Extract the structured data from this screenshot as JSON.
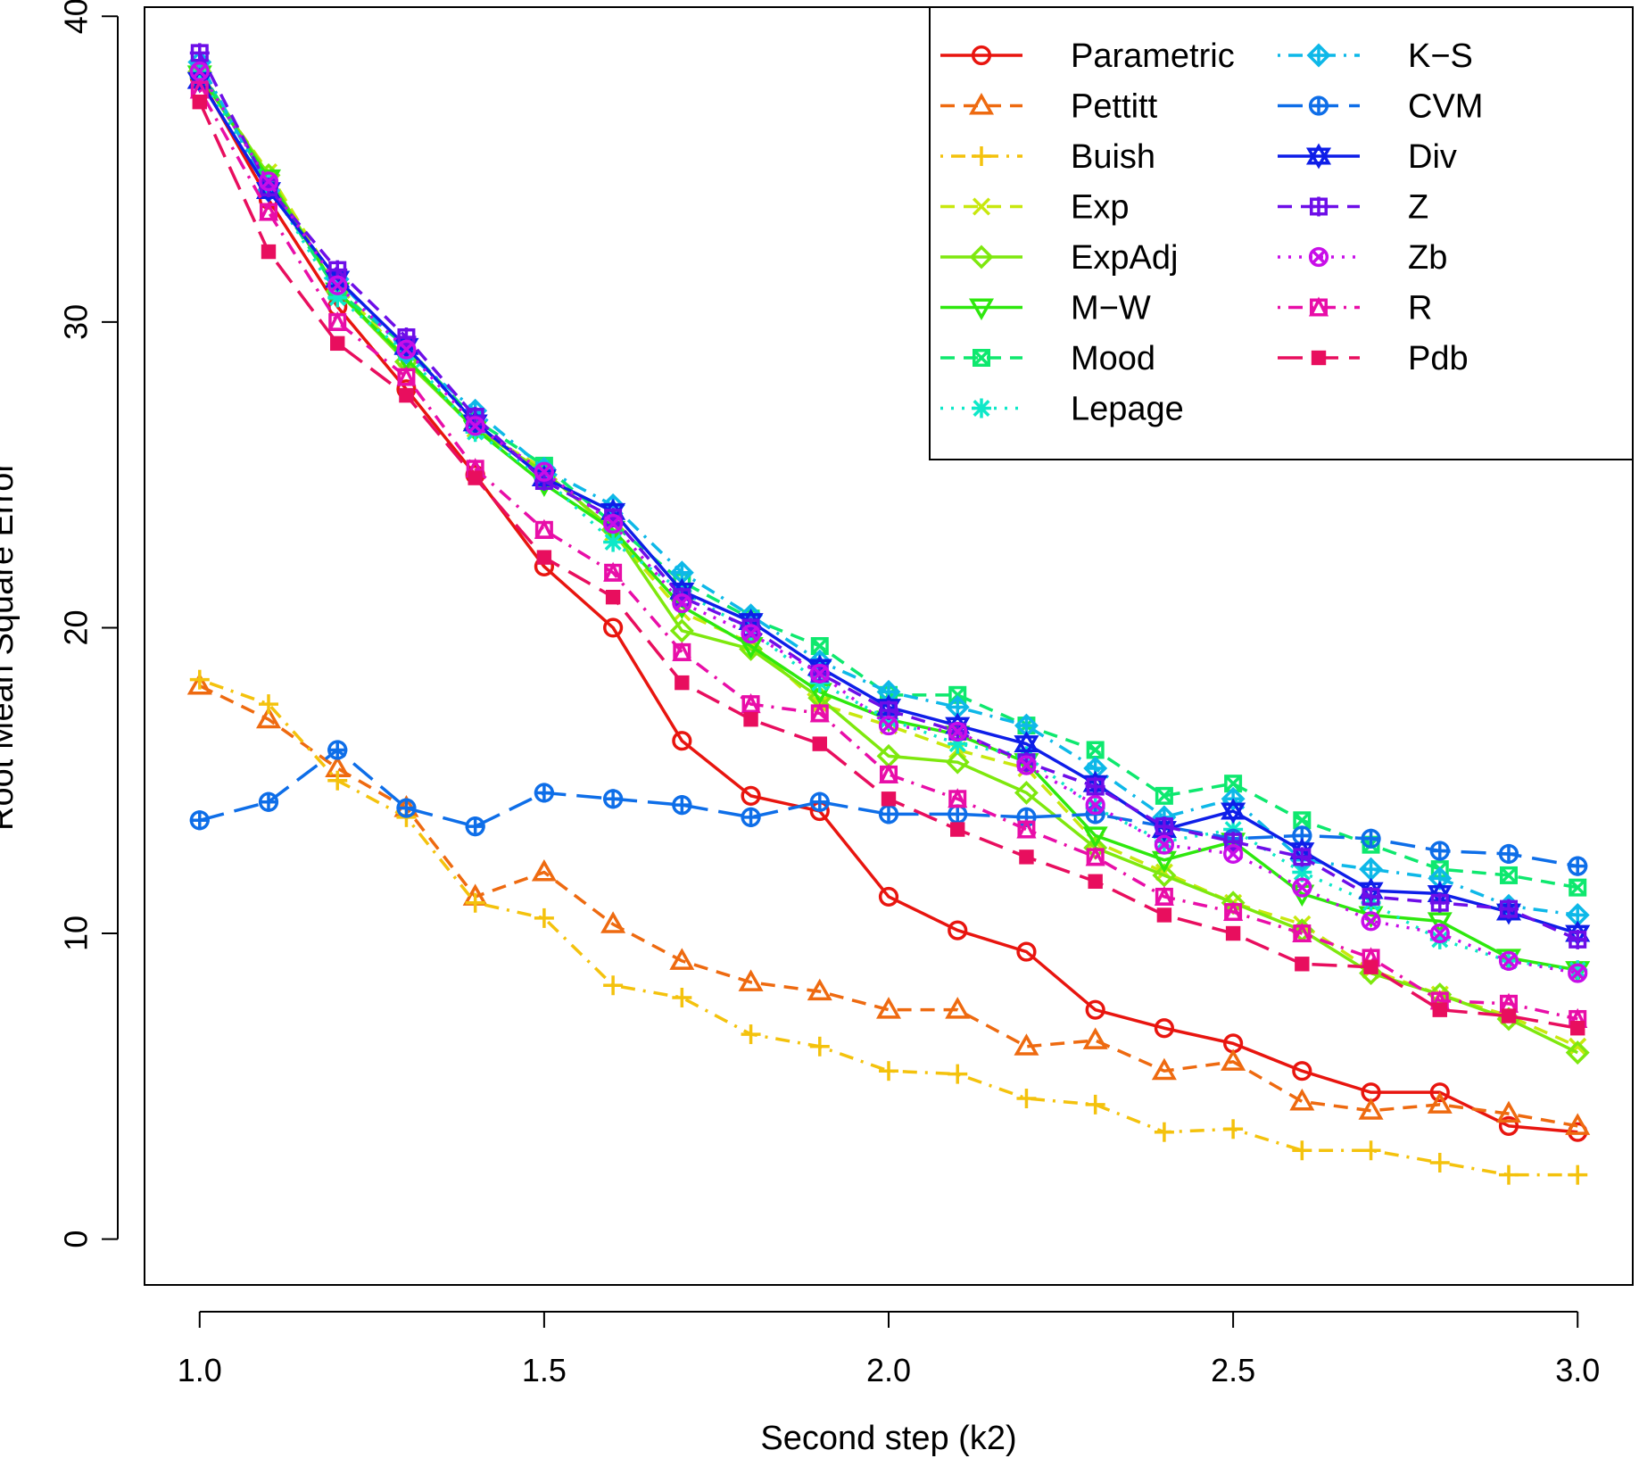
{
  "chart_data": {
    "type": "line",
    "title": "",
    "xlabel": "Second step (k2)",
    "ylabel": "Root Mean Square Error",
    "xlim": [
      0.92,
      3.08
    ],
    "ylim": [
      -1.5,
      40.3
    ],
    "x_ticks": [
      "1.0",
      "1.5",
      "2.0",
      "2.5",
      "3.0"
    ],
    "x_tick_values": [
      1.0,
      1.5,
      2.0,
      2.5,
      3.0
    ],
    "y_ticks": [
      "0",
      "10",
      "20",
      "30",
      "40"
    ],
    "y_tick_values": [
      0,
      10,
      20,
      30,
      40
    ],
    "grid": false,
    "legend_position": "top-right",
    "x": [
      1.0,
      1.1,
      1.2,
      1.3,
      1.4,
      1.5,
      1.6,
      1.7,
      1.8,
      1.9,
      2.0,
      2.1,
      2.2,
      2.3,
      2.4,
      2.5,
      2.6,
      2.7,
      2.8,
      2.9,
      3.0
    ],
    "series": [
      {
        "name": "Parametric",
        "color": "#e8150f",
        "dash": "solid",
        "marker": "circle",
        "values": [
          38.0,
          34.0,
          30.5,
          27.8,
          25.0,
          22.0,
          20.0,
          16.3,
          14.5,
          14.0,
          11.2,
          10.1,
          9.4,
          7.5,
          6.9,
          6.4,
          5.5,
          4.8,
          4.8,
          3.7,
          3.5
        ]
      },
      {
        "name": "Pettitt",
        "color": "#ee6a10",
        "dash": "dashed",
        "marker": "triangle",
        "values": [
          18.1,
          17.0,
          15.4,
          14.1,
          11.2,
          12.0,
          10.3,
          9.1,
          8.4,
          8.1,
          7.5,
          7.5,
          6.3,
          6.5,
          5.5,
          5.8,
          4.5,
          4.2,
          4.4,
          4.1,
          3.7
        ]
      },
      {
        "name": "Buish",
        "color": "#f4c20d",
        "dash": "dotdash",
        "marker": "plus",
        "values": [
          18.3,
          17.5,
          15.0,
          13.8,
          11.0,
          10.5,
          8.3,
          7.9,
          6.7,
          6.3,
          5.5,
          5.4,
          4.6,
          4.4,
          3.5,
          3.6,
          2.9,
          2.9,
          2.5,
          2.1,
          2.1
        ]
      },
      {
        "name": "Exp",
        "color": "#c8e80e",
        "dash": "dashed",
        "marker": "cross",
        "values": [
          38.1,
          34.9,
          31.2,
          28.8,
          26.5,
          25.2,
          23.1,
          20.5,
          19.5,
          17.5,
          16.8,
          16.0,
          15.4,
          13.0,
          12.0,
          11.0,
          10.3,
          8.8,
          8.0,
          7.3,
          6.3
        ]
      },
      {
        "name": "ExpAdj",
        "color": "#7ee80e",
        "dash": "solid",
        "marker": "diamond",
        "values": [
          38.2,
          34.8,
          31.0,
          28.7,
          26.5,
          25.1,
          23.2,
          19.9,
          19.3,
          17.7,
          15.8,
          15.6,
          14.6,
          12.8,
          11.9,
          11.0,
          10.1,
          8.7,
          8.0,
          7.2,
          6.1
        ]
      },
      {
        "name": "M−W",
        "color": "#2ee80e",
        "dash": "solid",
        "marker": "triangle-down",
        "values": [
          38.1,
          34.7,
          31.0,
          28.8,
          26.5,
          24.7,
          23.2,
          20.7,
          19.4,
          17.9,
          17.0,
          16.5,
          15.6,
          13.2,
          12.4,
          13.0,
          11.3,
          10.6,
          10.4,
          9.2,
          8.8
        ]
      },
      {
        "name": "Mood",
        "color": "#0ee86e",
        "dash": "dashed",
        "marker": "square-x",
        "values": [
          38.3,
          34.5,
          31.0,
          29.2,
          26.8,
          25.3,
          23.4,
          21.5,
          20.3,
          19.4,
          17.8,
          17.8,
          16.8,
          16.0,
          14.5,
          14.9,
          13.7,
          12.9,
          12.1,
          11.9,
          11.5
        ]
      },
      {
        "name": "Lepage",
        "color": "#0ee8c8",
        "dash": "dotted",
        "marker": "asterisk",
        "values": [
          38.0,
          34.5,
          30.8,
          29.0,
          26.4,
          24.9,
          22.8,
          21.2,
          19.9,
          18.2,
          17.0,
          16.2,
          15.8,
          14.1,
          13.0,
          13.4,
          12.0,
          11.0,
          9.8,
          9.1,
          8.8
        ]
      },
      {
        "name": "K−S",
        "color": "#0eb8e8",
        "dash": "dotdash",
        "marker": "diamond-plus",
        "values": [
          38.5,
          34.3,
          31.4,
          29.0,
          27.1,
          25.2,
          24.0,
          21.8,
          20.4,
          18.9,
          17.9,
          17.4,
          16.8,
          15.4,
          13.8,
          14.4,
          12.4,
          12.1,
          11.8,
          10.9,
          10.6
        ]
      },
      {
        "name": "CVM",
        "color": "#0e6ee8",
        "dash": "longdash",
        "marker": "circle-plus",
        "values": [
          13.7,
          14.3,
          16.0,
          14.1,
          13.5,
          14.6,
          14.4,
          14.2,
          13.8,
          14.3,
          13.9,
          13.9,
          13.8,
          13.9,
          13.5,
          13.1,
          13.2,
          13.1,
          12.7,
          12.6,
          12.2
        ]
      },
      {
        "name": "Div",
        "color": "#0e1ee8",
        "dash": "solid",
        "marker": "star",
        "values": [
          37.9,
          34.3,
          31.4,
          29.2,
          26.7,
          24.9,
          23.8,
          21.2,
          20.2,
          18.7,
          17.4,
          16.8,
          16.2,
          14.9,
          13.4,
          14.0,
          12.7,
          11.4,
          11.3,
          10.7,
          10.0
        ]
      },
      {
        "name": "Z",
        "color": "#6e0ee8",
        "dash": "dashed",
        "marker": "square-plus",
        "values": [
          38.8,
          34.4,
          31.7,
          29.5,
          26.9,
          24.8,
          23.6,
          21.0,
          20.0,
          18.5,
          17.3,
          16.6,
          15.6,
          14.8,
          13.5,
          13.0,
          12.5,
          11.2,
          11.0,
          10.8,
          9.8
        ]
      },
      {
        "name": "Zb",
        "color": "#c80ee8",
        "dash": "dotted",
        "marker": "circle-x",
        "values": [
          38.2,
          34.6,
          31.2,
          29.1,
          26.6,
          25.1,
          23.4,
          20.8,
          19.8,
          18.5,
          16.8,
          16.6,
          15.5,
          14.2,
          12.9,
          12.6,
          11.5,
          10.4,
          10.0,
          9.1,
          8.7
        ]
      },
      {
        "name": "R",
        "color": "#e80ea8",
        "dash": "dotdash",
        "marker": "square-triangle",
        "values": [
          37.6,
          33.6,
          30.0,
          28.2,
          25.2,
          23.2,
          21.8,
          19.2,
          17.5,
          17.2,
          15.2,
          14.4,
          13.4,
          12.5,
          11.2,
          10.7,
          10.0,
          9.2,
          7.8,
          7.7,
          7.2
        ]
      },
      {
        "name": "Pdb",
        "color": "#e80e5e",
        "dash": "longdash",
        "marker": "square-filled",
        "values": [
          37.2,
          32.3,
          29.3,
          27.6,
          24.9,
          22.3,
          21.0,
          18.2,
          17.0,
          16.2,
          14.4,
          13.4,
          12.5,
          11.7,
          10.6,
          10.0,
          9.0,
          8.9,
          7.5,
          7.3,
          6.9
        ]
      }
    ]
  }
}
